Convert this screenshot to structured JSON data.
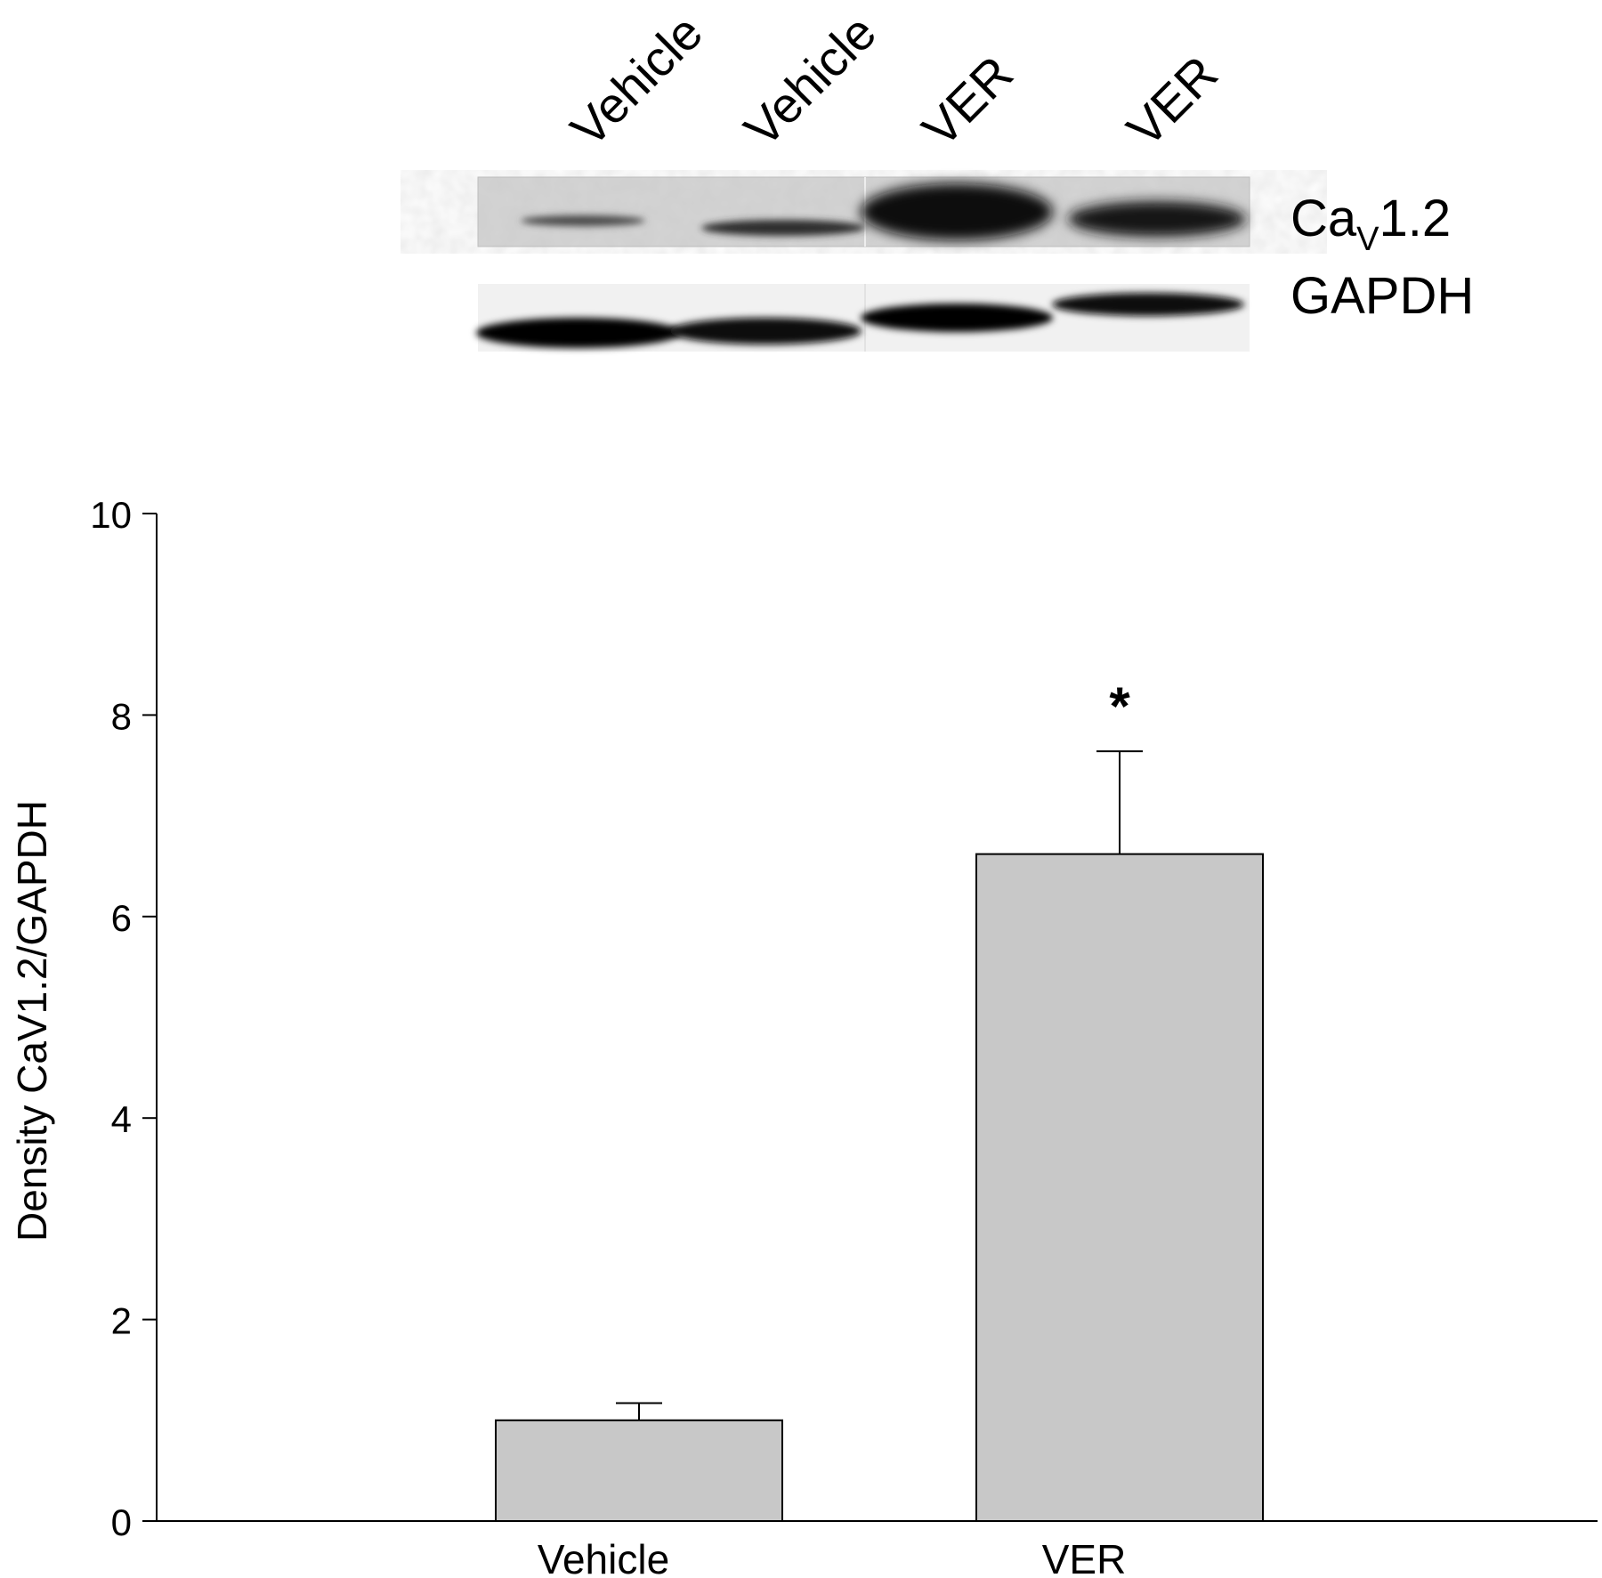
{
  "blot": {
    "lanes": [
      "Vehicle",
      "Vehicle",
      "VER",
      "VER"
    ],
    "rows": [
      {
        "label_main": "Ca",
        "label_sub": "V",
        "label_tail": "1.2"
      },
      {
        "label_main": "GAPDH",
        "label_sub": "",
        "label_tail": ""
      }
    ]
  },
  "chart_data": {
    "type": "bar",
    "categories": [
      "Vehicle",
      "VER"
    ],
    "values": [
      1.0,
      6.62
    ],
    "errors": [
      0.17,
      1.02
    ],
    "significance": [
      "",
      "*"
    ],
    "xlabel": "",
    "ylabel": "Density CaV1.2/GAPDH",
    "ylim": [
      0,
      10
    ],
    "yticks": [
      0,
      2,
      4,
      6,
      8,
      10
    ],
    "grid": false,
    "bar_color": "#c8c8c8"
  }
}
